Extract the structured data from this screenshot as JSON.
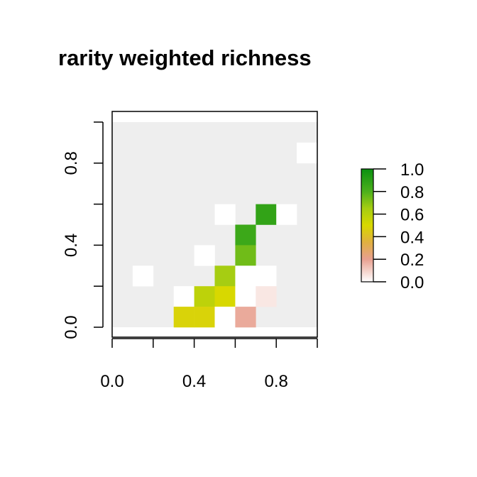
{
  "chart_data": {
    "type": "heatmap",
    "title": "rarity weighted richness",
    "xlabel": "",
    "ylabel": "",
    "xlim": [
      0.0,
      1.0
    ],
    "ylim": [
      0.0,
      1.0
    ],
    "x_ticks": [
      0.0,
      0.2,
      0.4,
      0.6,
      0.8,
      1.0
    ],
    "x_tick_labels": [
      "0.0",
      "",
      "0.4",
      "",
      "0.8",
      ""
    ],
    "y_ticks": [
      0.0,
      0.2,
      0.4,
      0.6,
      0.8,
      1.0
    ],
    "y_tick_labels": [
      "0.0",
      "",
      "0.4",
      "",
      "0.8",
      ""
    ],
    "grid": {
      "ncol": 10,
      "nrow": 10,
      "background_value": "no data",
      "background_color": "#eeeeee"
    },
    "cells": [
      {
        "col": 9,
        "row": 8,
        "value": 0.0
      },
      {
        "col": 5,
        "row": 5,
        "value": 0.0
      },
      {
        "col": 7,
        "row": 5,
        "value": 0.88
      },
      {
        "col": 8,
        "row": 5,
        "value": 0.0
      },
      {
        "col": 6,
        "row": 4,
        "value": 0.85
      },
      {
        "col": 4,
        "row": 3,
        "value": 0.0
      },
      {
        "col": 6,
        "row": 3,
        "value": 0.74
      },
      {
        "col": 1,
        "row": 2,
        "value": 0.0
      },
      {
        "col": 5,
        "row": 2,
        "value": 0.65
      },
      {
        "col": 6,
        "row": 2,
        "value": 0.0
      },
      {
        "col": 7,
        "row": 2,
        "value": 0.0
      },
      {
        "col": 3,
        "row": 1,
        "value": 0.0
      },
      {
        "col": 4,
        "row": 1,
        "value": 0.58
      },
      {
        "col": 5,
        "row": 1,
        "value": 0.5
      },
      {
        "col": 6,
        "row": 1,
        "value": 0.0
      },
      {
        "col": 7,
        "row": 1,
        "value": 0.05
      },
      {
        "col": 3,
        "row": 0,
        "value": 0.48
      },
      {
        "col": 4,
        "row": 0,
        "value": 0.48
      },
      {
        "col": 5,
        "row": 0,
        "value": 0.0
      },
      {
        "col": 6,
        "row": 0,
        "value": 0.18
      }
    ],
    "legend": {
      "range": [
        0.0,
        1.0
      ],
      "ticks": [
        0.0,
        0.2,
        0.4,
        0.6,
        0.8,
        1.0
      ],
      "tick_labels": [
        "0.0",
        "0.2",
        "0.4",
        "0.6",
        "0.8",
        "1.0"
      ],
      "placement": "right"
    },
    "colorscale": [
      {
        "value": 0.0,
        "color": "#ffffff"
      },
      {
        "value": 0.2,
        "color": "#e8a090"
      },
      {
        "value": 0.35,
        "color": "#e0b040"
      },
      {
        "value": 0.5,
        "color": "#d8d800"
      },
      {
        "value": 0.65,
        "color": "#a6cd12"
      },
      {
        "value": 0.8,
        "color": "#4cb01c"
      },
      {
        "value": 1.0,
        "color": "#0a9010"
      }
    ]
  }
}
